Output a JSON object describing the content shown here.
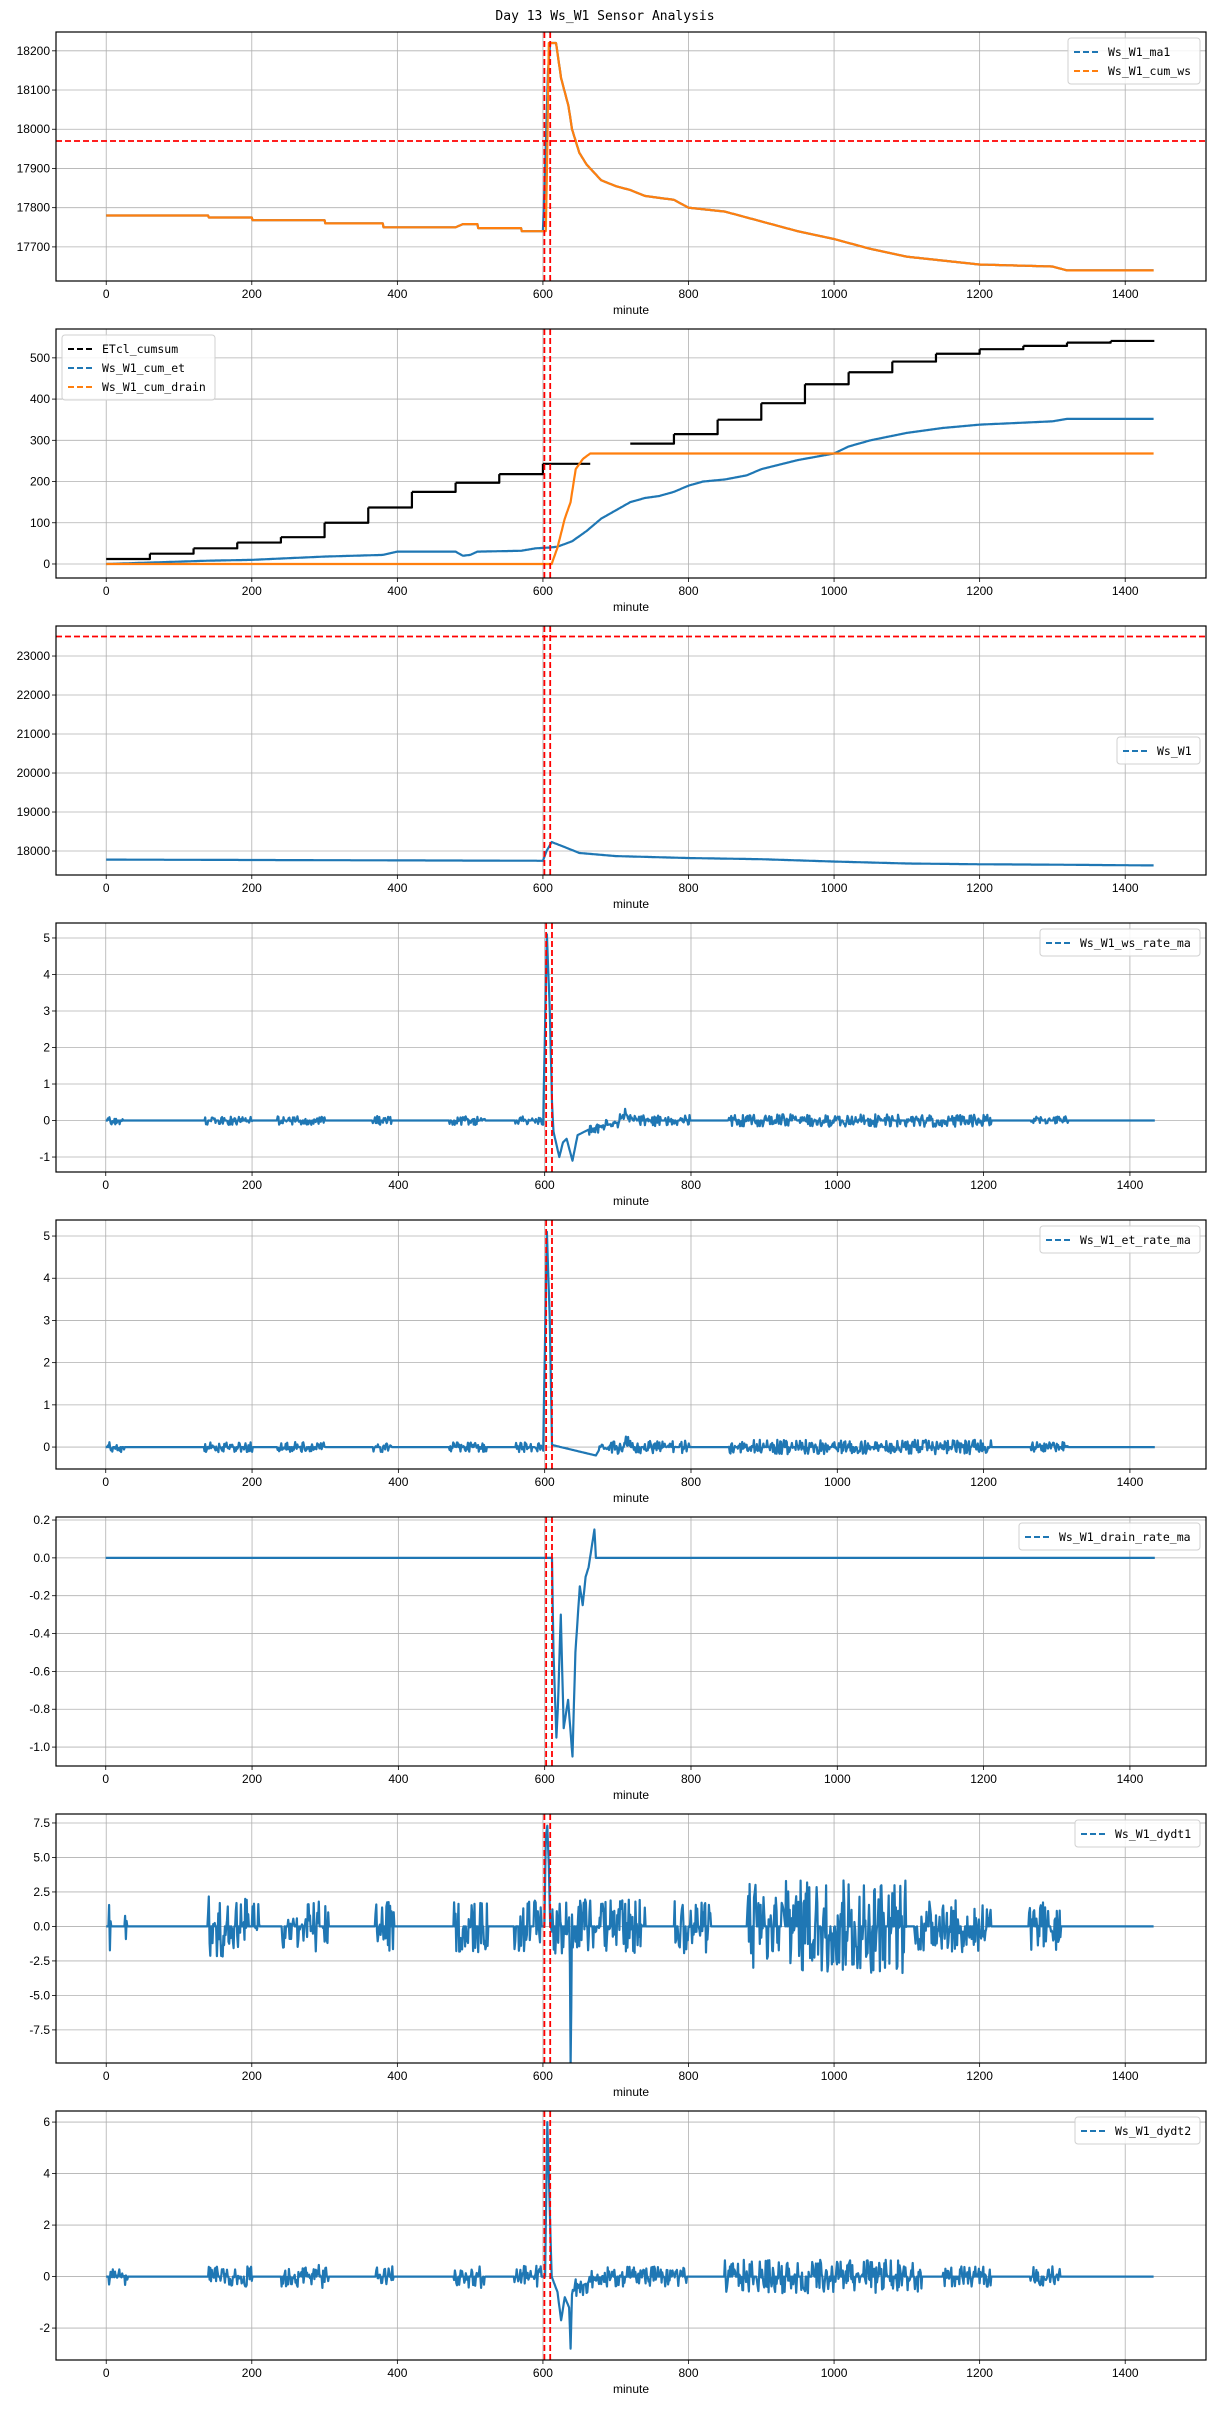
{
  "title": "Day 13 Ws_W1 Sensor Analysis",
  "colors": {
    "blue": "#1f77b4",
    "orange": "#ff7f0e",
    "black": "#000000",
    "threshold": "#ff0000",
    "grid": "#b0b0b0"
  },
  "chart_data": [
    {
      "type": "line",
      "xlabel": "minute",
      "xlim": [
        -69,
        1511
      ],
      "ylim": [
        17613,
        18248
      ],
      "grid": true,
      "xticks": [
        0,
        200,
        400,
        600,
        800,
        1000,
        1200,
        1400
      ],
      "yticks": [
        "17700",
        "17800",
        "17900",
        "18000",
        "18100",
        "18200"
      ],
      "legend": {
        "placement": "upper right"
      },
      "vlines": [
        602,
        610
      ],
      "hlines": [
        17970
      ],
      "series": [
        {
          "name": "Ws_W1_ma1",
          "color": "#1f77b4",
          "kind": "line",
          "x": [
            0,
            140,
            141,
            200,
            201,
            300,
            301,
            380,
            381,
            480,
            490,
            510,
            511,
            570,
            571,
            600,
            603,
            607,
            610,
            618,
            625,
            635,
            640,
            650,
            660,
            680,
            700,
            720,
            740,
            780,
            800,
            850,
            900,
            950,
            1000,
            1050,
            1100,
            1150,
            1200,
            1300,
            1320,
            1439
          ],
          "y": [
            17780,
            17780,
            17775,
            17775,
            17768,
            17768,
            17760,
            17760,
            17750,
            17750,
            17758,
            17758,
            17748,
            17748,
            17740,
            17740,
            17900,
            18150,
            18220,
            18220,
            18130,
            18060,
            18000,
            17940,
            17910,
            17870,
            17855,
            17845,
            17830,
            17820,
            17800,
            17790,
            17765,
            17740,
            17720,
            17695,
            17675,
            17665,
            17655,
            17650,
            17640,
            17640
          ]
        },
        {
          "name": "Ws_W1_cum_ws",
          "color": "#ff7f0e",
          "kind": "line",
          "x": [
            0,
            140,
            141,
            200,
            201,
            300,
            301,
            380,
            381,
            480,
            490,
            510,
            511,
            570,
            571,
            604,
            606,
            608,
            618,
            625,
            635,
            640,
            650,
            660,
            680,
            700,
            720,
            740,
            780,
            800,
            850,
            900,
            950,
            1000,
            1050,
            1100,
            1150,
            1200,
            1300,
            1320,
            1439
          ],
          "y": [
            17780,
            17780,
            17775,
            17775,
            17768,
            17768,
            17760,
            17760,
            17750,
            17750,
            17758,
            17758,
            17748,
            17748,
            17740,
            17740,
            17950,
            18220,
            18220,
            18130,
            18060,
            18000,
            17940,
            17910,
            17870,
            17855,
            17845,
            17830,
            17820,
            17800,
            17790,
            17765,
            17740,
            17720,
            17695,
            17675,
            17665,
            17655,
            17650,
            17640,
            17640
          ]
        }
      ]
    },
    {
      "type": "line",
      "xlabel": "minute",
      "xlim": [
        -69,
        1511
      ],
      "ylim": [
        -34,
        570
      ],
      "grid": true,
      "xticks": [
        0,
        200,
        400,
        600,
        800,
        1000,
        1200,
        1400
      ],
      "yticks": [
        "0",
        "100",
        "200",
        "300",
        "400",
        "500"
      ],
      "legend": {
        "placement": "upper left"
      },
      "vlines": [
        602,
        610
      ],
      "hlines": [],
      "series": [
        {
          "name": "ETcl_cumsum",
          "color": "#000000",
          "kind": "step",
          "x": [
            0,
            60,
            120,
            180,
            240,
            300,
            360,
            420,
            480,
            540,
            600,
            665,
            720,
            780,
            840,
            900,
            960,
            1020,
            1080,
            1140,
            1200,
            1260,
            1320,
            1380,
            1440
          ],
          "y": [
            12,
            25,
            38,
            52,
            65,
            100,
            137,
            175,
            197,
            218,
            243,
            null,
            292,
            315,
            350,
            390,
            436,
            465,
            491,
            510,
            521,
            529,
            537,
            541,
            541
          ]
        },
        {
          "name": "Ws_W1_cum_et",
          "color": "#1f77b4",
          "kind": "line",
          "x": [
            0,
            140,
            200,
            300,
            380,
            400,
            480,
            490,
            500,
            510,
            570,
            590,
            610,
            620,
            640,
            660,
            680,
            700,
            720,
            740,
            760,
            780,
            800,
            820,
            850,
            880,
            900,
            950,
            1000,
            1020,
            1050,
            1100,
            1150,
            1200,
            1250,
            1300,
            1320,
            1439
          ],
          "y": [
            0,
            8,
            10,
            18,
            22,
            30,
            30,
            20,
            22,
            30,
            32,
            38,
            40,
            42,
            55,
            80,
            110,
            130,
            150,
            160,
            165,
            175,
            190,
            200,
            205,
            215,
            230,
            252,
            268,
            285,
            300,
            318,
            330,
            338,
            342,
            346,
            352,
            352
          ]
        },
        {
          "name": "Ws_W1_cum_drain",
          "color": "#ff7f0e",
          "kind": "line",
          "x": [
            0,
            612,
            620,
            630,
            638,
            645,
            655,
            665,
            1439
          ],
          "y": [
            0,
            0,
            40,
            110,
            150,
            230,
            255,
            268,
            268
          ]
        }
      ]
    },
    {
      "type": "line",
      "xlabel": "minute",
      "xlim": [
        -69,
        1511
      ],
      "ylim": [
        17385,
        23770
      ],
      "grid": true,
      "xticks": [
        0,
        200,
        400,
        600,
        800,
        1000,
        1200,
        1400
      ],
      "yticks": [
        "18000",
        "19000",
        "20000",
        "21000",
        "22000",
        "23000"
      ],
      "legend": {
        "placement": "center right"
      },
      "vlines": [
        602,
        610
      ],
      "hlines": [
        23500
      ],
      "series": [
        {
          "name": "Ws_W1",
          "color": "#1f77b4",
          "kind": "line",
          "x": [
            0,
            300,
            600,
            605,
            612,
            630,
            650,
            700,
            800,
            900,
            1000,
            1100,
            1200,
            1300,
            1439
          ],
          "y": [
            17780,
            17765,
            17750,
            18000,
            18230,
            18100,
            17950,
            17870,
            17820,
            17790,
            17730,
            17680,
            17660,
            17650,
            17630
          ]
        }
      ]
    },
    {
      "type": "line",
      "xlabel": "minute",
      "xlim": [
        -68,
        1504
      ],
      "ylim": [
        -1.41,
        5.41
      ],
      "grid": true,
      "xticks": [
        0,
        200,
        400,
        600,
        800,
        1000,
        1200,
        1400
      ],
      "yticks": [
        "-1",
        "0",
        "1",
        "2",
        "3",
        "4",
        "5"
      ],
      "legend": {
        "placement": "upper right"
      },
      "vlines": [
        602,
        610
      ],
      "hlines": [],
      "series": [
        {
          "name": "Ws_W1_ws_rate_ma",
          "color": "#1f77b4",
          "kind": "line",
          "x": [
            0,
            598,
            603,
            607,
            610,
            612,
            620,
            625,
            630,
            638,
            645,
            660,
            700,
            710,
            720,
            1434
          ],
          "y": [
            0,
            0,
            5.1,
            3,
            0.5,
            -0.3,
            -1.0,
            -0.6,
            -0.5,
            -1.1,
            -0.4,
            -0.25,
            -0.05,
            0.2,
            0,
            0
          ],
          "bursts": [
            [
              3,
              25,
              0.12
            ],
            [
              135,
              200,
              0.12
            ],
            [
              235,
              300,
              0.12
            ],
            [
              365,
              390,
              0.12
            ],
            [
              470,
              520,
              0.12
            ],
            [
              560,
              598,
              0.12
            ],
            [
              660,
              800,
              0.15
            ],
            [
              850,
              1210,
              0.17
            ],
            [
              1265,
              1315,
              0.12
            ]
          ]
        }
      ]
    },
    {
      "type": "line",
      "xlabel": "minute",
      "xlim": [
        -68,
        1504
      ],
      "ylim": [
        -0.52,
        5.38
      ],
      "grid": true,
      "xticks": [
        0,
        200,
        400,
        600,
        800,
        1000,
        1200,
        1400
      ],
      "yticks": [
        "0",
        "1",
        "2",
        "3",
        "4",
        "5"
      ],
      "legend": {
        "placement": "upper right"
      },
      "vlines": [
        602,
        610
      ],
      "hlines": [],
      "series": [
        {
          "name": "Ws_W1_et_rate_ma",
          "color": "#1f77b4",
          "kind": "line",
          "x": [
            0,
            598,
            603,
            607,
            610,
            670,
            675,
            708,
            712,
            716,
            1434
          ],
          "y": [
            0,
            0,
            5.1,
            3,
            0.05,
            -0.2,
            -0.05,
            0,
            0.2,
            0,
            0
          ],
          "bursts": [
            [
              3,
              25,
              0.12
            ],
            [
              135,
              200,
              0.12
            ],
            [
              235,
              300,
              0.12
            ],
            [
              365,
              390,
              0.12
            ],
            [
              470,
              520,
              0.12
            ],
            [
              560,
              598,
              0.12
            ],
            [
              675,
              800,
              0.15
            ],
            [
              850,
              1210,
              0.17
            ],
            [
              1265,
              1315,
              0.12
            ]
          ]
        }
      ]
    },
    {
      "type": "line",
      "xlabel": "minute",
      "xlim": [
        -68,
        1504
      ],
      "ylim": [
        -1.1,
        0.216
      ],
      "grid": true,
      "xticks": [
        0,
        200,
        400,
        600,
        800,
        1000,
        1200,
        1400
      ],
      "yticks": [
        "-1.0",
        "-0.8",
        "-0.6",
        "-0.4",
        "-0.2",
        "0.0",
        "0.2"
      ],
      "legend": {
        "placement": "upper right"
      },
      "vlines": [
        602,
        610
      ],
      "hlines": [],
      "series": [
        {
          "name": "Ws_W1_drain_rate_ma",
          "color": "#1f77b4",
          "kind": "line",
          "x": [
            0,
            610,
            612,
            616,
            618,
            622,
            626,
            632,
            638,
            642,
            648,
            652,
            656,
            660,
            664,
            668,
            670,
            1434
          ],
          "y": [
            0,
            0,
            -0.5,
            -0.95,
            -0.8,
            -0.3,
            -0.9,
            -0.75,
            -1.05,
            -0.5,
            -0.15,
            -0.25,
            -0.1,
            -0.05,
            0.05,
            0.15,
            0,
            0
          ]
        }
      ]
    },
    {
      "type": "line",
      "xlabel": "minute",
      "xlim": [
        -69,
        1511
      ],
      "ylim": [
        -9.9,
        8.15
      ],
      "grid": true,
      "xticks": [
        0,
        200,
        400,
        600,
        800,
        1000,
        1200,
        1400
      ],
      "yticks": [
        "-7.5",
        "-5.0",
        "-2.5",
        "0.0",
        "2.5",
        "5.0",
        "7.5"
      ],
      "legend": {
        "placement": "upper right"
      },
      "vlines": [
        602,
        610
      ],
      "hlines": [],
      "series": [
        {
          "name": "Ws_W1_dydt1",
          "color": "#1f77b4",
          "kind": "line",
          "x": [
            0,
            602,
            604,
            606,
            608,
            610,
            636,
            638,
            640,
            1439
          ],
          "y": [
            0,
            0,
            6.5,
            7.3,
            4.5,
            0,
            0,
            -9.0,
            0,
            0
          ],
          "bursts": [
            [
              3,
              6,
              1.9
            ],
            [
              25,
              28,
              1.9
            ],
            [
              140,
              195,
              2.2
            ],
            [
              200,
              210,
              1.9
            ],
            [
              240,
              305,
              1.9
            ],
            [
              370,
              395,
              1.9
            ],
            [
              478,
              525,
              1.9
            ],
            [
              560,
              598,
              1.9
            ],
            [
              612,
              740,
              2.0
            ],
            [
              780,
              830,
              2.0
            ],
            [
              880,
              1100,
              3.4
            ],
            [
              1110,
              1215,
              1.9
            ],
            [
              1268,
              1312,
              1.9
            ]
          ]
        }
      ]
    },
    {
      "type": "line",
      "xlabel": "minute",
      "xlim": [
        -69,
        1511
      ],
      "ylim": [
        -3.24,
        6.43
      ],
      "grid": true,
      "xticks": [
        0,
        200,
        400,
        600,
        800,
        1000,
        1200,
        1400
      ],
      "yticks": [
        "-2",
        "0",
        "2",
        "4",
        "6"
      ],
      "legend": {
        "placement": "upper right"
      },
      "vlines": [
        602,
        610
      ],
      "hlines": [],
      "series": [
        {
          "name": "Ws_W1_dydt2",
          "color": "#1f77b4",
          "kind": "line",
          "x": [
            0,
            603,
            606,
            609,
            612,
            620,
            625,
            630,
            636,
            638,
            640,
            650,
            680,
            1439
          ],
          "y": [
            0,
            0,
            6.0,
            3,
            0,
            -0.6,
            -1.7,
            -0.8,
            -1.2,
            -2.8,
            -0.6,
            -0.4,
            0,
            0
          ],
          "bursts": [
            [
              3,
              30,
              0.35
            ],
            [
              140,
              200,
              0.4
            ],
            [
              240,
              305,
              0.45
            ],
            [
              370,
              395,
              0.45
            ],
            [
              478,
              520,
              0.45
            ],
            [
              560,
              598,
              0.45
            ],
            [
              640,
              800,
              0.4
            ],
            [
              850,
              1120,
              0.65
            ],
            [
              1150,
              1215,
              0.4
            ],
            [
              1268,
              1312,
              0.4
            ]
          ]
        }
      ]
    }
  ]
}
